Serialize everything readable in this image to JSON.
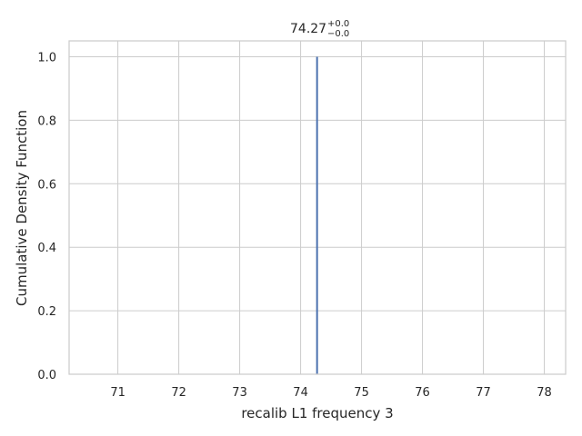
{
  "chart_data": {
    "type": "line",
    "title": {
      "value": "74.27",
      "upper": "+0.0",
      "lower": "−0.0"
    },
    "xlabel": "recalib L1 frequency 3",
    "ylabel": "Cumulative Density Function",
    "xlim": [
      70.2,
      78.35
    ],
    "ylim": [
      0.0,
      1.05
    ],
    "xticks": [
      71,
      72,
      73,
      74,
      75,
      76,
      77,
      78
    ],
    "yticks": [
      0.0,
      0.2,
      0.4,
      0.6,
      0.8,
      1.0
    ],
    "xtick_labels": [
      "71",
      "72",
      "73",
      "74",
      "75",
      "76",
      "77",
      "78"
    ],
    "ytick_labels": [
      "0.0",
      "0.2",
      "0.4",
      "0.6",
      "0.8",
      "1.0"
    ],
    "grid": true,
    "series": [
      {
        "x": [
          74.27,
          74.27
        ],
        "y": [
          0.0,
          1.0
        ],
        "color": "#4c72b0"
      }
    ]
  }
}
